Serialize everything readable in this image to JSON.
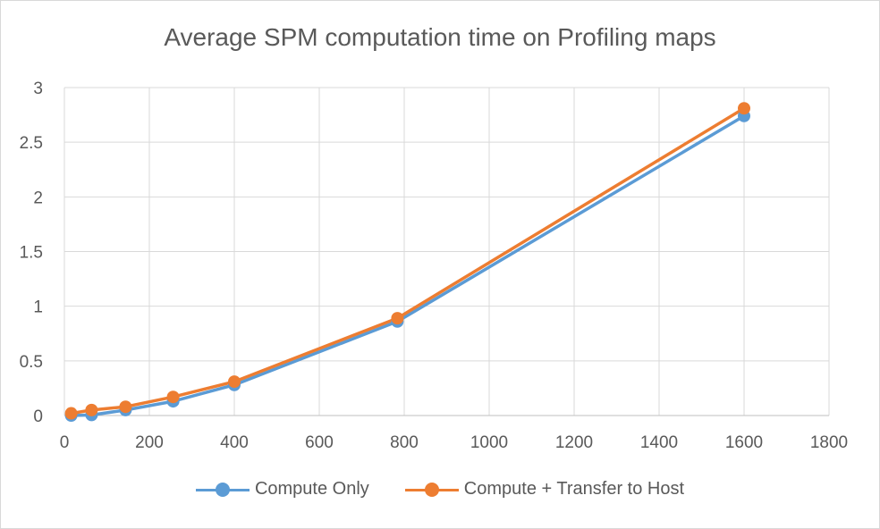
{
  "chart_data": {
    "type": "line",
    "title": "Average SPM computation time on Profiling maps",
    "xlabel": "",
    "ylabel": "",
    "xlim": [
      0,
      1800
    ],
    "ylim": [
      0,
      3
    ],
    "x_ticks": [
      "0",
      "200",
      "400",
      "600",
      "800",
      "1000",
      "1200",
      "1400",
      "1600",
      "1800"
    ],
    "y_ticks": [
      "0",
      "0.5",
      "1",
      "1.5",
      "2",
      "2.5",
      "3"
    ],
    "grid": true,
    "legend_position": "bottom",
    "series": [
      {
        "name": "Compute Only",
        "color": "#5b9bd5",
        "x": [
          16,
          64,
          144,
          256,
          400,
          784,
          1600
        ],
        "y": [
          0.0,
          0.005,
          0.05,
          0.13,
          0.28,
          0.86,
          2.74
        ]
      },
      {
        "name": "Compute + Transfer to Host",
        "color": "#ed7d31",
        "x": [
          16,
          64,
          144,
          256,
          400,
          784,
          1600
        ],
        "y": [
          0.02,
          0.05,
          0.08,
          0.17,
          0.31,
          0.89,
          2.81
        ]
      }
    ]
  }
}
